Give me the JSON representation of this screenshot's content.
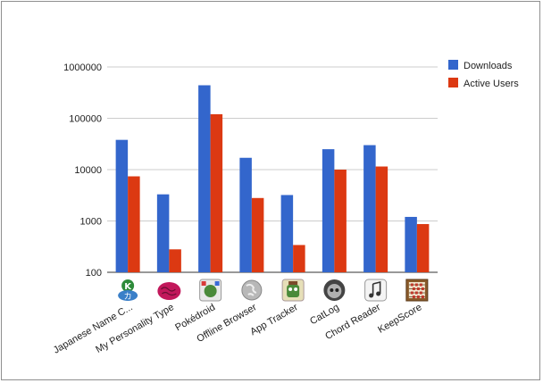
{
  "chart_data": {
    "type": "bar",
    "yscale": "log",
    "ylim": [
      100,
      1000000
    ],
    "yticks": [
      "100",
      "1000",
      "10000",
      "100000",
      "1000000"
    ],
    "grid": true,
    "legend_position": "right",
    "categories": [
      "Japanese Name C...",
      "My Personality Type",
      "Pokédroid",
      "Offline Browser",
      "App Tracker",
      "CatLog",
      "Chord Reader",
      "KeepScore"
    ],
    "category_icons": [
      "kana-app-icon",
      "brain-app-icon",
      "pokedroid-app-icon",
      "globe-app-icon",
      "robot-app-icon",
      "cat-app-icon",
      "music-note-app-icon",
      "abacus-app-icon"
    ],
    "series": [
      {
        "name": "Downloads",
        "color": "#3366cc",
        "values": [
          38000,
          3300,
          440000,
          17000,
          3200,
          25000,
          30000,
          1200
        ]
      },
      {
        "name": "Active Users",
        "color": "#dc3912",
        "values": [
          7400,
          280,
          120000,
          2800,
          340,
          10000,
          11500,
          870
        ]
      }
    ]
  }
}
